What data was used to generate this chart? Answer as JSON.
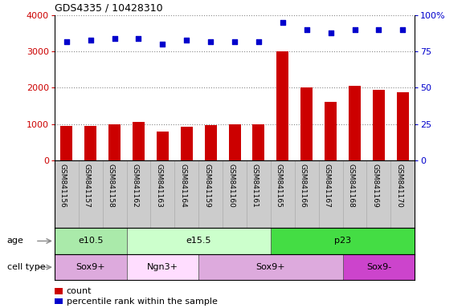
{
  "title": "GDS4335 / 10428310",
  "samples": [
    "GSM841156",
    "GSM841157",
    "GSM841158",
    "GSM841162",
    "GSM841163",
    "GSM841164",
    "GSM841159",
    "GSM841160",
    "GSM841161",
    "GSM841165",
    "GSM841166",
    "GSM841167",
    "GSM841168",
    "GSM841169",
    "GSM841170"
  ],
  "counts": [
    950,
    940,
    1000,
    1050,
    780,
    920,
    960,
    1000,
    1000,
    3000,
    2020,
    1600,
    2050,
    1940,
    1870
  ],
  "percentile_ranks": [
    82,
    83,
    84,
    84,
    80,
    83,
    82,
    82,
    82,
    95,
    90,
    88,
    90,
    90,
    90
  ],
  "ylim_left": [
    0,
    4000
  ],
  "ylim_right": [
    0,
    100
  ],
  "yticks_left": [
    0,
    1000,
    2000,
    3000,
    4000
  ],
  "yticks_right": [
    0,
    25,
    50,
    75,
    100
  ],
  "bar_color": "#cc0000",
  "dot_color": "#0000cc",
  "age_groups": [
    {
      "label": "e10.5",
      "start": 0,
      "end": 3,
      "color": "#aaeaaa"
    },
    {
      "label": "e15.5",
      "start": 3,
      "end": 9,
      "color": "#ccffcc"
    },
    {
      "label": "p23",
      "start": 9,
      "end": 15,
      "color": "#44dd44"
    }
  ],
  "cell_type_groups": [
    {
      "label": "Sox9+",
      "start": 0,
      "end": 3,
      "color": "#ddaadd"
    },
    {
      "label": "Ngn3+",
      "start": 3,
      "end": 6,
      "color": "#ffddff"
    },
    {
      "label": "Sox9+",
      "start": 6,
      "end": 12,
      "color": "#ddaadd"
    },
    {
      "label": "Sox9-",
      "start": 12,
      "end": 15,
      "color": "#cc44cc"
    }
  ],
  "age_label": "age",
  "cell_type_label": "cell type",
  "legend_count_label": "count",
  "legend_pct_label": "percentile rank within the sample",
  "xlbl_bg_color": "#cccccc",
  "bg_color": "#ffffff"
}
